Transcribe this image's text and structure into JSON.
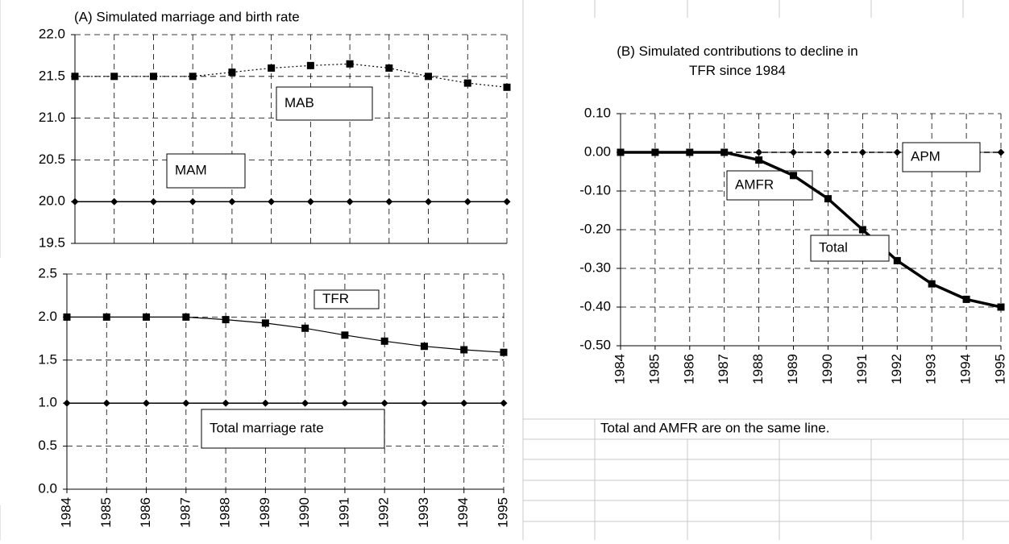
{
  "chart_data": [
    {
      "type": "line",
      "title": "(A) Simulated marriage and birth rate",
      "ylim": [
        19.5,
        22
      ],
      "yticks": [
        19.5,
        {
          "value": 20,
          "label": "20.0"
        },
        20.5,
        {
          "value": 21,
          "label": "21.0"
        },
        21.5,
        {
          "value": 22,
          "label": "22.0"
        }
      ],
      "grid": true,
      "series": [
        {
          "name": "MAB",
          "color": "#000000",
          "line_style": "dotted",
          "marker": "square",
          "width": 1.2,
          "values": [
            21.5,
            21.5,
            21.5,
            21.5,
            21.55,
            21.6,
            21.63,
            21.65,
            21.6,
            21.5,
            21.42,
            21.37
          ]
        },
        {
          "name": "MAM",
          "color": "#000000",
          "line_style": "solid",
          "marker": "diamond",
          "width": 1.5,
          "values": [
            20,
            20,
            20,
            20,
            20,
            20,
            20,
            20,
            20,
            20,
            20,
            20
          ]
        }
      ]
    },
    {
      "type": "line",
      "categories": [
        "1984",
        "1985",
        "1986",
        "1987",
        "1988",
        "1989",
        "1990",
        "1991",
        "1992",
        "1993",
        "1994",
        "1995"
      ],
      "ylim": [
        0,
        2.5
      ],
      "yticks": [
        {
          "value": 0,
          "label": "0.0"
        },
        0.5,
        {
          "value": 1,
          "label": "1.0"
        },
        1.5,
        {
          "value": 2,
          "label": "2.0"
        },
        2.5
      ],
      "grid": true,
      "series": [
        {
          "name": "TFR",
          "color": "#000000",
          "line_style": "solid",
          "marker": "square",
          "width": 1.2,
          "values": [
            2.0,
            2.0,
            2.0,
            2.0,
            1.97,
            1.93,
            1.87,
            1.79,
            1.72,
            1.66,
            1.62,
            1.59
          ]
        },
        {
          "name": "Total marriage rate",
          "color": "#000000",
          "line_style": "solid",
          "marker": "diamond",
          "width": 1.5,
          "values": [
            1,
            1,
            1,
            1,
            1,
            1,
            1,
            1,
            1,
            1,
            1,
            1
          ]
        }
      ]
    },
    {
      "type": "line",
      "title": "(B) Simulated contributions to decline in TFR since 1984",
      "note": "Total and AMFR are on the same line.",
      "categories": [
        "1984",
        "1985",
        "1986",
        "1987",
        "1988",
        "1989",
        "1990",
        "1991",
        "1992",
        "1993",
        "1994",
        "1995"
      ],
      "ylim": [
        -0.5,
        0.1
      ],
      "yticks": [
        {
          "value": -0.5,
          "label": "-0.50"
        },
        {
          "value": -0.4,
          "label": "-0.40"
        },
        {
          "value": -0.3,
          "label": "-0.30"
        },
        {
          "value": -0.2,
          "label": "-0.20"
        },
        {
          "value": -0.1,
          "label": "-0.10"
        },
        {
          "value": 0,
          "label": "0.00"
        },
        {
          "value": 0.1,
          "label": "0.10"
        }
      ],
      "grid": true,
      "series": [
        {
          "name": "APM",
          "color": "#000000",
          "line_style": "dashed",
          "marker": "diamond",
          "width": 1.5,
          "values": [
            0,
            0,
            0,
            0,
            0,
            0,
            0,
            0,
            0,
            0,
            0,
            0
          ]
        },
        {
          "name": "AMFR",
          "color": "#555555",
          "line_style": "dashed",
          "marker": "none",
          "width": 1.5,
          "values": [
            0,
            0,
            0,
            0,
            -0.02,
            -0.06,
            -0.12,
            -0.2,
            -0.28,
            -0.34,
            -0.38,
            -0.4
          ]
        },
        {
          "name": "Total",
          "color": "#000000",
          "line_style": "solid",
          "marker": "square",
          "width": 3.5,
          "values": [
            0,
            0,
            0,
            0,
            -0.02,
            -0.06,
            -0.12,
            -0.2,
            -0.28,
            -0.34,
            -0.38,
            -0.4
          ]
        }
      ]
    }
  ]
}
